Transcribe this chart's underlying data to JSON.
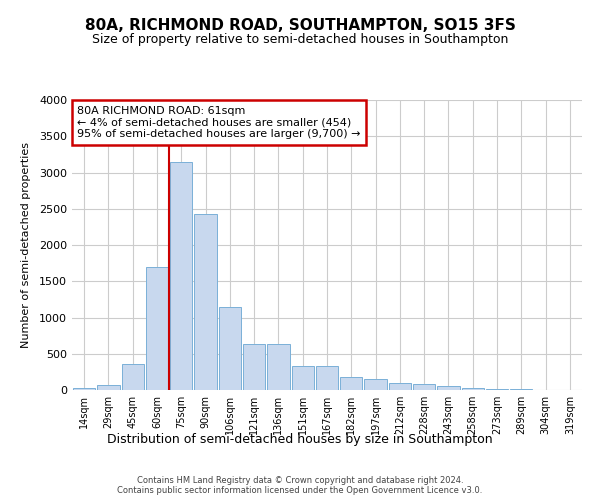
{
  "title": "80A, RICHMOND ROAD, SOUTHAMPTON, SO15 3FS",
  "subtitle": "Size of property relative to semi-detached houses in Southampton",
  "xlabel": "Distribution of semi-detached houses by size in Southampton",
  "ylabel": "Number of semi-detached properties",
  "footer_line1": "Contains HM Land Registry data © Crown copyright and database right 2024.",
  "footer_line2": "Contains public sector information licensed under the Open Government Licence v3.0.",
  "categories": [
    "14sqm",
    "29sqm",
    "45sqm",
    "60sqm",
    "75sqm",
    "90sqm",
    "106sqm",
    "121sqm",
    "136sqm",
    "151sqm",
    "167sqm",
    "182sqm",
    "197sqm",
    "212sqm",
    "228sqm",
    "243sqm",
    "258sqm",
    "273sqm",
    "289sqm",
    "304sqm",
    "319sqm"
  ],
  "values": [
    30,
    75,
    360,
    1700,
    3150,
    2430,
    1150,
    630,
    630,
    330,
    330,
    175,
    150,
    100,
    80,
    60,
    30,
    18,
    10,
    4,
    4
  ],
  "bar_color": "#c8d8ee",
  "bar_edge_color": "#7ab0d8",
  "annotation_title": "80A RICHMOND ROAD: 61sqm",
  "annotation_line1": "← 4% of semi-detached houses are smaller (454)",
  "annotation_line2": "95% of semi-detached houses are larger (9,700) →",
  "annotation_box_color": "#ffffff",
  "annotation_border_color": "#cc0000",
  "vline_color": "#cc0000",
  "vline_x_index": 3,
  "ylim": [
    0,
    4000
  ],
  "yticks": [
    0,
    500,
    1000,
    1500,
    2000,
    2500,
    3000,
    3500,
    4000
  ],
  "grid_color": "#cccccc",
  "background_color": "#ffffff",
  "plot_bg_color": "#ffffff"
}
